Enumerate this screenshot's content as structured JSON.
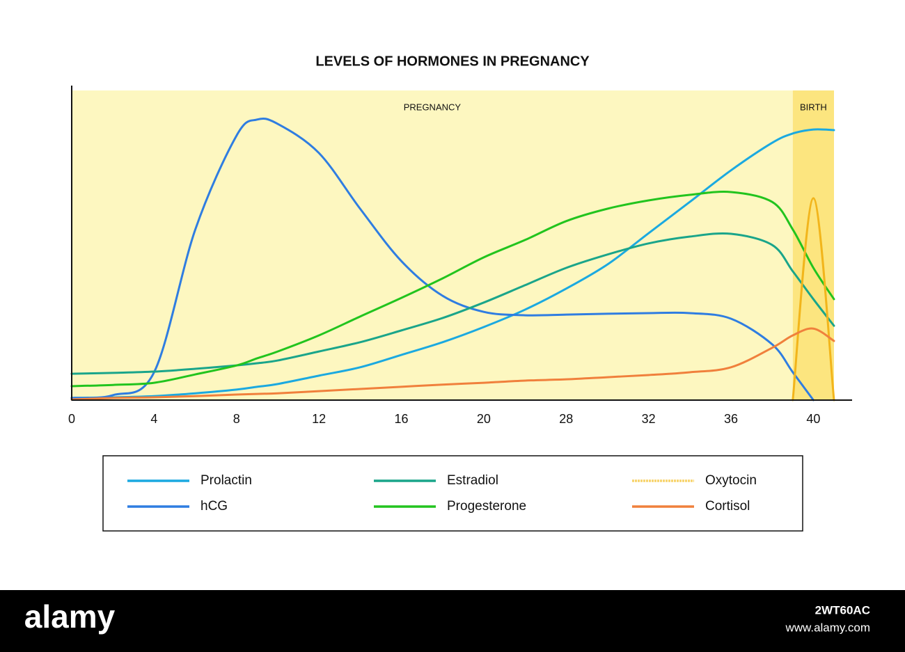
{
  "chart_data": {
    "type": "line",
    "title": "LEVELS OF HORMONES IN PREGNANCY",
    "x": [
      0,
      2,
      4,
      6,
      8,
      9,
      10,
      12,
      14,
      16,
      18,
      20,
      24,
      28,
      30,
      32,
      34,
      36,
      38,
      39,
      40,
      41
    ],
    "xlim": [
      0,
      41
    ],
    "xticks": [
      0,
      4,
      8,
      12,
      16,
      20,
      28,
      32,
      36,
      40
    ],
    "ylim": [
      0,
      100
    ],
    "regions": [
      {
        "label": "PREGNANCY",
        "range": [
          0,
          39
        ],
        "color": "#fdf7c0"
      },
      {
        "label": "BIRTH",
        "range": [
          39,
          41
        ],
        "color": "#fce57f"
      }
    ],
    "series": [
      {
        "name": "Prolactin",
        "color": "#1ba9e0",
        "values": [
          0.7,
          0.9,
          1.3,
          2.2,
          3.4,
          4.3,
          5.2,
          7.9,
          10.6,
          14.6,
          18.7,
          23.6,
          29.2,
          36.0,
          43.8,
          53.9,
          64.0,
          74.2,
          83.1,
          86.1,
          87.4,
          87.2
        ]
      },
      {
        "name": "hCG",
        "color": "#2f7de1",
        "values": [
          0.7,
          1.6,
          9.0,
          55.1,
          85.4,
          90.6,
          89.2,
          79.8,
          61.8,
          44.9,
          33.7,
          28.5,
          27.4,
          27.6,
          27.9,
          28.1,
          28.1,
          26.3,
          18.0,
          9.0,
          0,
          null
        ]
      },
      {
        "name": "Estradiol",
        "color": "#1aa58a",
        "values": [
          8.5,
          8.8,
          9.2,
          10.1,
          11.2,
          11.9,
          12.8,
          15.7,
          18.7,
          22.5,
          26.5,
          31.5,
          37.1,
          42.7,
          47.0,
          50.6,
          52.8,
          53.7,
          50.1,
          41.6,
          32.6,
          24.0
        ]
      },
      {
        "name": "Progesterone",
        "color": "#22c41e",
        "values": [
          4.5,
          4.9,
          5.6,
          8.3,
          11.2,
          13.5,
          15.7,
          20.9,
          27.0,
          33.0,
          39.3,
          46.1,
          51.7,
          57.8,
          61.8,
          64.5,
          66.3,
          67.2,
          64.0,
          55.1,
          42.7,
          32.6
        ]
      },
      {
        "name": "Oxytocin",
        "color": "#f2b51b",
        "dashed_legend": true,
        "values": [
          null,
          null,
          null,
          null,
          null,
          null,
          null,
          null,
          null,
          null,
          null,
          null,
          null,
          null,
          null,
          null,
          null,
          null,
          null,
          0,
          65.2,
          0
        ]
      },
      {
        "name": "Cortisol",
        "color": "#f0803c",
        "values": [
          0.2,
          0.7,
          0.9,
          1.3,
          1.8,
          2.0,
          2.2,
          2.9,
          3.6,
          4.3,
          5.0,
          5.6,
          6.3,
          6.7,
          7.4,
          8.1,
          9.0,
          10.6,
          16.9,
          20.9,
          23.1,
          19.1
        ]
      }
    ]
  },
  "watermark": {
    "brand": "alamy",
    "id": "2WT60AC",
    "site": "www.alamy.com"
  }
}
